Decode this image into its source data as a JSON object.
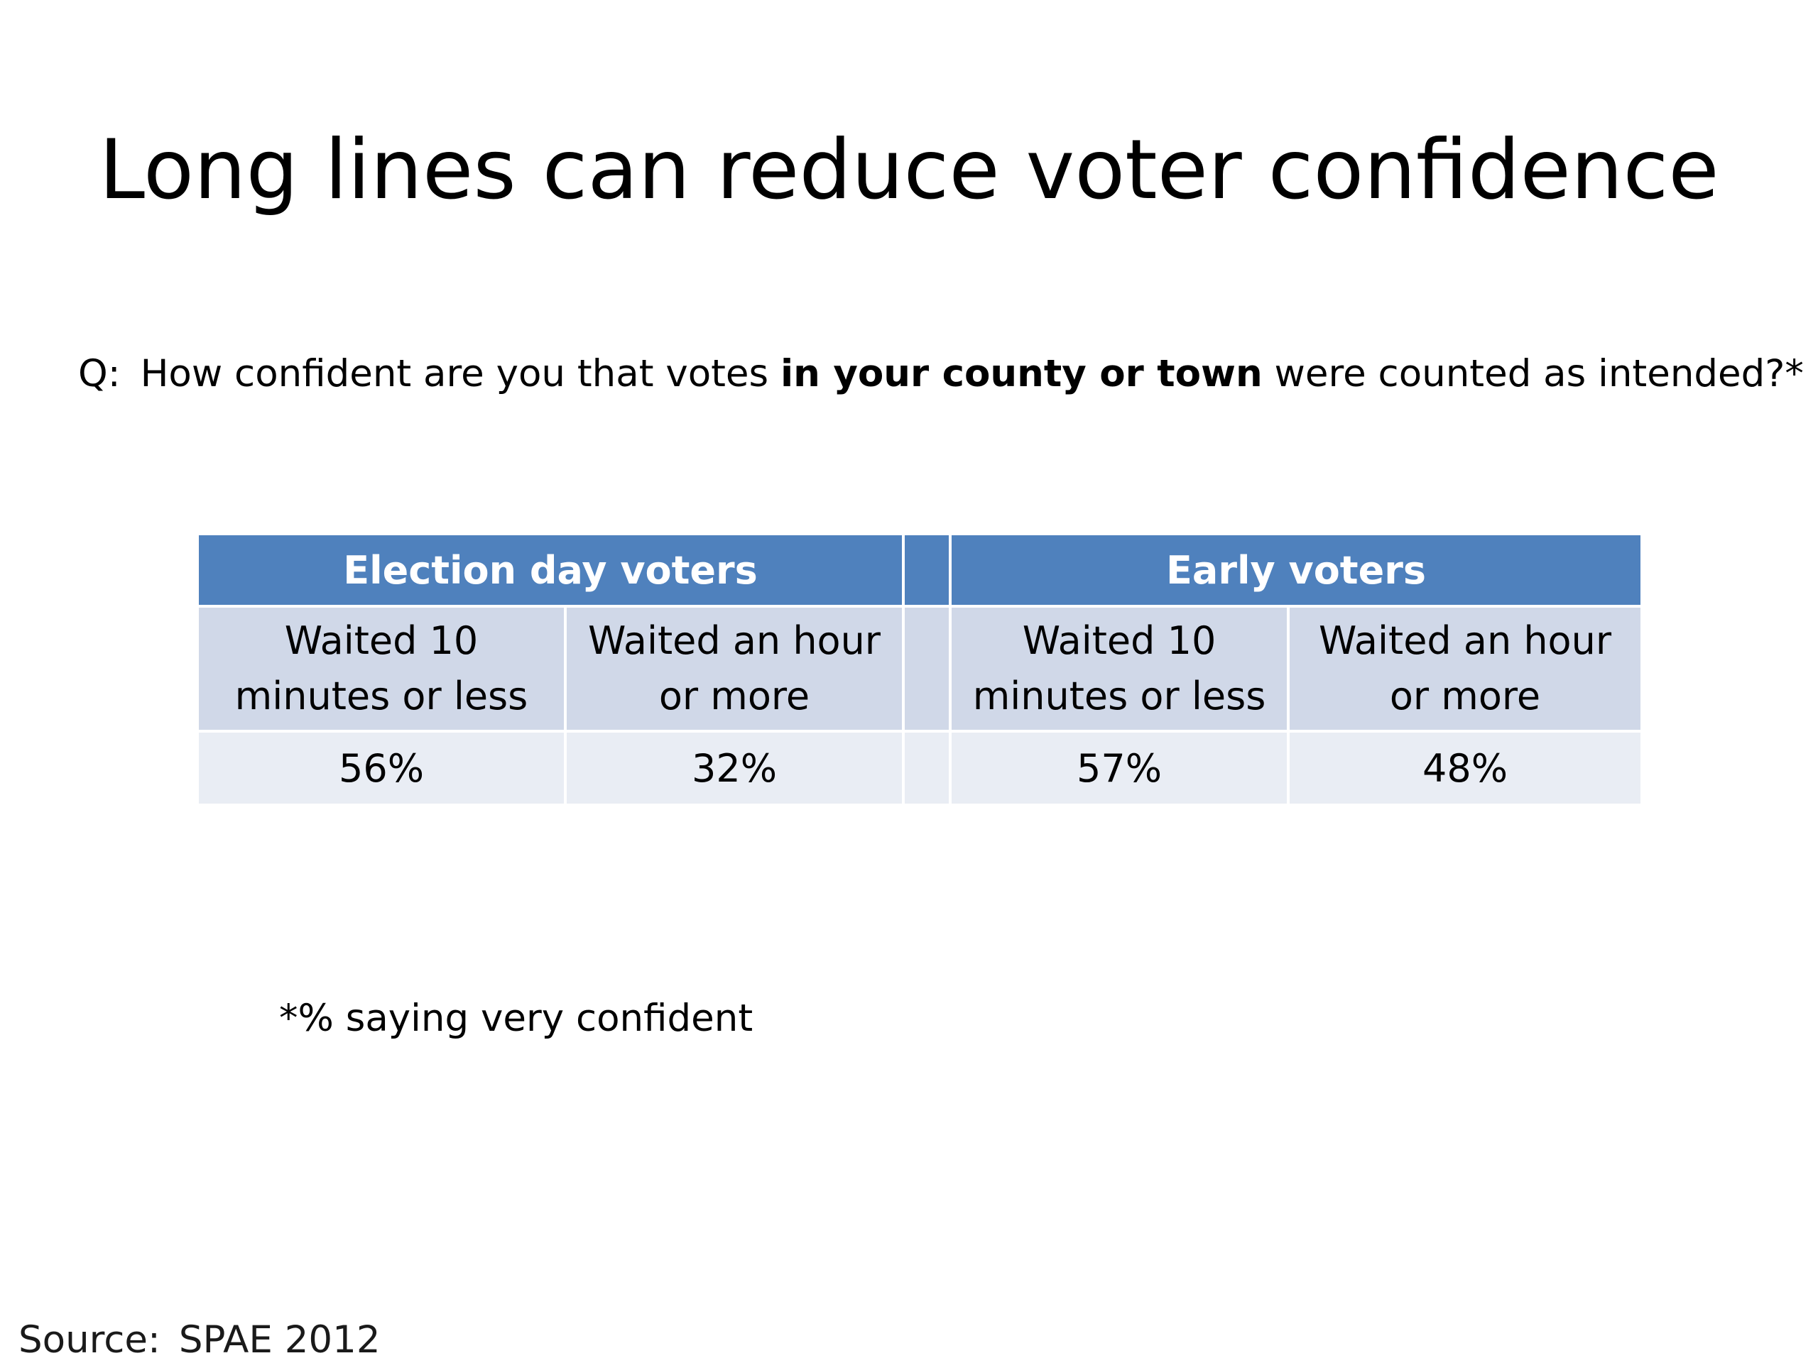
{
  "slide": {
    "title": "Long lines can reduce voter confidence",
    "question": {
      "prefix": "Q:",
      "text_before": "How confident are you that votes ",
      "text_bold": "in your county or town",
      "text_after": " were counted as intended?*"
    },
    "table": {
      "groups": [
        {
          "label": "Election day voters",
          "columns": [
            {
              "label": "Waited 10 minutes or less",
              "value": "56%"
            },
            {
              "label": "Waited an hour or more",
              "value": "32%"
            }
          ]
        },
        {
          "label": "Early voters",
          "columns": [
            {
              "label": "Waited 10 minutes or less",
              "value": "57%"
            },
            {
              "label": "Waited an hour or more",
              "value": "48%"
            }
          ]
        }
      ]
    },
    "footnote": "*% saying very confident",
    "source": {
      "label": "Source:",
      "value": "SPAE 2012"
    },
    "colors": {
      "header_bg": "#4f81bd",
      "subheader_bg": "#d0d8e8",
      "value_row_bg": "#e9edf4",
      "header_text": "#ffffff"
    }
  }
}
